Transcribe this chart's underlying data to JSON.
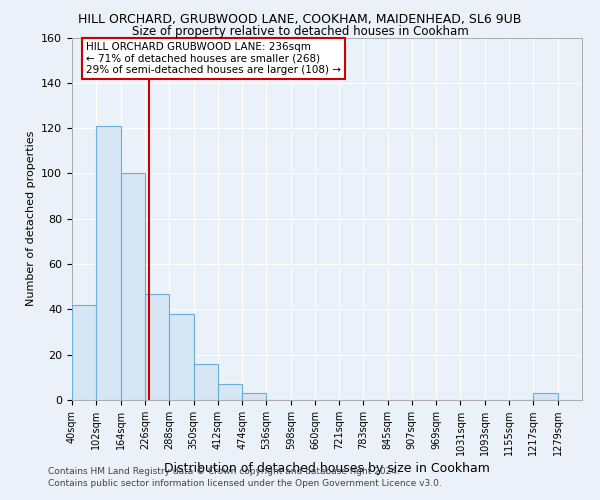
{
  "title": "HILL ORCHARD, GRUBWOOD LANE, COOKHAM, MAIDENHEAD, SL6 9UB",
  "subtitle": "Size of property relative to detached houses in Cookham",
  "xlabel": "Distribution of detached houses by size in Cookham",
  "ylabel": "Number of detached properties",
  "footer1": "Contains HM Land Registry data © Crown copyright and database right 2024.",
  "footer2": "Contains public sector information licensed under the Open Government Licence v3.0.",
  "annotation_text": "HILL ORCHARD GRUBWOOD LANE: 236sqm\n← 71% of detached houses are smaller (268)\n29% of semi-detached houses are larger (108) →",
  "red_line_x": 236,
  "bar_edges": [
    40,
    102,
    164,
    226,
    288,
    350,
    412,
    474,
    536,
    598,
    660,
    721,
    783,
    845,
    907,
    969,
    1031,
    1093,
    1155,
    1217,
    1279
  ],
  "bar_heights": [
    42,
    121,
    100,
    47,
    38,
    16,
    7,
    3,
    0,
    0,
    0,
    0,
    0,
    0,
    0,
    0,
    0,
    0,
    0,
    3,
    0
  ],
  "bar_color": "#d6e6f4",
  "bar_edge_color": "#6aaed6",
  "background_color": "#eaf1f8",
  "grid_color": "#ffffff",
  "red_color": "#cc0000",
  "ylim": [
    0,
    160
  ],
  "yticks": [
    0,
    20,
    40,
    60,
    80,
    100,
    120,
    140,
    160
  ],
  "title_fontsize": 9,
  "subtitle_fontsize": 8.5,
  "ylabel_fontsize": 8,
  "xlabel_fontsize": 9,
  "tick_fontsize": 7,
  "footer_fontsize": 6.5
}
